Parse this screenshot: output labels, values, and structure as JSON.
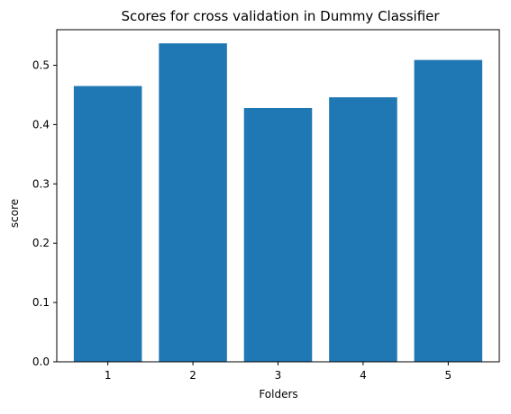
{
  "chart_data": {
    "type": "bar",
    "title": "Scores for cross validation in Dummy Classifier",
    "xlabel": "Folders",
    "ylabel": "score",
    "categories": [
      "1",
      "2",
      "3",
      "4",
      "5"
    ],
    "values": [
      0.465,
      0.537,
      0.428,
      0.446,
      0.509
    ],
    "ylim": [
      0.0,
      0.56
    ],
    "yticks": [
      "0.0",
      "0.1",
      "0.2",
      "0.3",
      "0.4",
      "0.5"
    ],
    "grid": false,
    "legend": "none",
    "bar_color": "#1f77b4"
  }
}
